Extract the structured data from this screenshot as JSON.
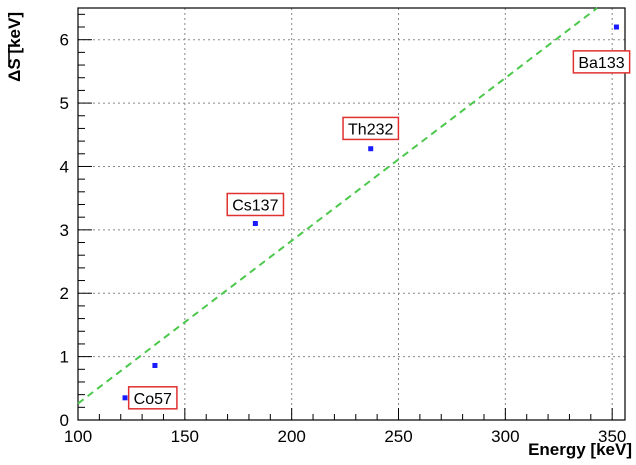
{
  "chart_data": {
    "type": "scatter",
    "xlabel": "Energy [keV]",
    "ylabel": "ΔS [keV]",
    "xlim": [
      100,
      356
    ],
    "ylim": [
      0,
      6.5
    ],
    "grid": true,
    "x_ticks": [
      "100",
      "150",
      "200",
      "250",
      "300",
      "350"
    ],
    "y_ticks": [
      "0",
      "1",
      "2",
      "3",
      "4",
      "5",
      "6"
    ],
    "series": [
      {
        "color": "#1a1aff",
        "points": [
          {
            "x": 122,
            "y": 0.35
          },
          {
            "x": 136,
            "y": 0.86
          },
          {
            "x": 183,
            "y": 3.1
          },
          {
            "x": 237,
            "y": 4.28
          },
          {
            "x": 352,
            "y": 6.2
          }
        ]
      }
    ],
    "fit_line": {
      "color": "#4cc84c",
      "style": "dashed",
      "points": [
        {
          "x": 100,
          "y": 0.26
        },
        {
          "x": 343,
          "y": 6.5
        }
      ]
    },
    "annotations": [
      {
        "text": "Co57",
        "x": 135,
        "y": 0.35
      },
      {
        "text": "Cs137",
        "x": 183,
        "y": 3.4
      },
      {
        "text": "Th232",
        "x": 237,
        "y": 4.6
      },
      {
        "text": "Ba133",
        "x": 345,
        "y": 5.65
      }
    ],
    "colors": {
      "label_box": "#e03030",
      "grid": "#888888",
      "axis": "#000000"
    }
  }
}
